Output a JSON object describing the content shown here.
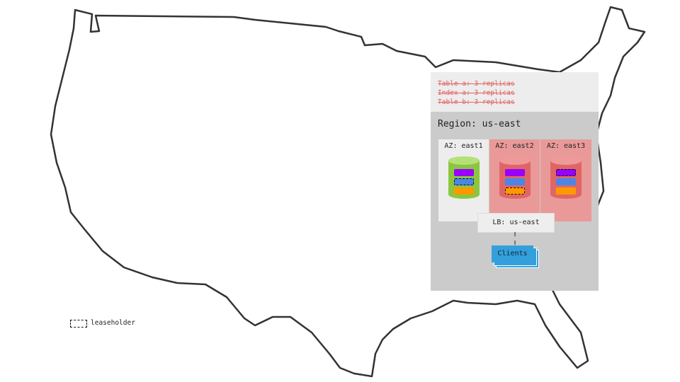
{
  "replicas": [
    "Table a: 3 replicas",
    "Index a: 3 replicas",
    "Table b: 3 replicas"
  ],
  "region": "Region: us-east",
  "azs": [
    {
      "label": "AZ: east1",
      "status": "up",
      "leaseholder_range": "blue"
    },
    {
      "label": "AZ: east2",
      "status": "down",
      "leaseholder_range": "orange"
    },
    {
      "label": "AZ: east3",
      "status": "down",
      "leaseholder_range": "purple"
    }
  ],
  "lb": "LB: us-east",
  "clients": "Clients",
  "legend": {
    "label": "leaseholder"
  },
  "colors": {
    "up": "#8cc63f",
    "down": "#e06666",
    "down_bg": "#ea9999",
    "purple": "#9900ff",
    "blue": "#4a86e8",
    "orange": "#ff9900",
    "clients": "#33a0dc"
  }
}
